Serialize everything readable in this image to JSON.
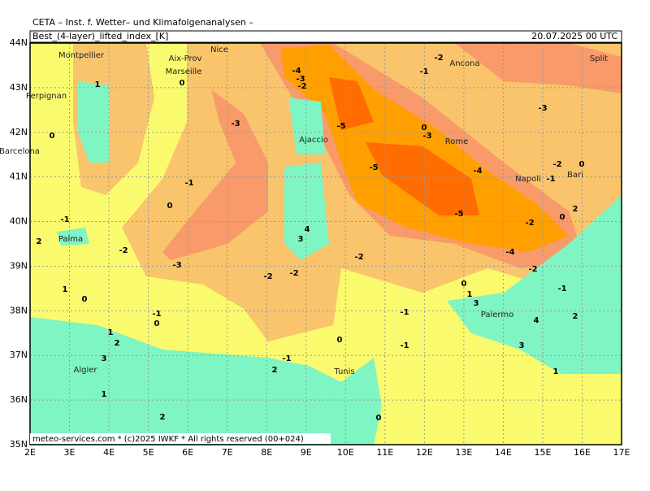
{
  "map": {
    "header": {
      "institute": "CETA – Inst. f. Wetter– und Klimafolgenanalysen –",
      "parameter": "Best_(4-layer)_lifted_index_[K]",
      "valid": "20.07.2025 00 UTC"
    },
    "footer": "meteo-services.com * (c)2025 IWKF * All rights reserved (00+024)",
    "lon_labels": [
      "2E",
      "3E",
      "4E",
      "5E",
      "6E",
      "7E",
      "8E",
      "9E",
      "10E",
      "11E",
      "12E",
      "13E",
      "14E",
      "15E",
      "16E",
      "17E"
    ],
    "lat_labels": [
      "44N",
      "43N",
      "42N",
      "41N",
      "40N",
      "39N",
      "38N",
      "37N",
      "36N",
      "35N"
    ],
    "cities": [
      "Montpellier",
      "Aix-Prov",
      "Nice",
      "Marseille",
      "Perpignan",
      "Barcelona",
      "Palma",
      "Ajaccio",
      "Rome",
      "Ancona",
      "Split",
      "Napoli",
      "Bari",
      "Palermo",
      "Algier",
      "Tunis"
    ],
    "contours": [
      "-4",
      "-3",
      "-2",
      "-5",
      "-5",
      "-5",
      "-4",
      "-4",
      "-3",
      "-3",
      "-3",
      "-2",
      "-2",
      "-2",
      "-2",
      "-2",
      "-2",
      "-2",
      "-1",
      "-1",
      "-1",
      "-1",
      "-1",
      "-1",
      "-1",
      "-1",
      "0",
      "0",
      "0",
      "0",
      "0",
      "0",
      "0",
      "0",
      "0",
      "1",
      "1",
      "1",
      "1",
      "1",
      "1",
      "2",
      "2",
      "2",
      "2",
      "2",
      "3",
      "3",
      "3",
      "3",
      "4",
      "4",
      "2",
      "-3",
      "0",
      "-2",
      "-1",
      "0"
    ]
  }
}
